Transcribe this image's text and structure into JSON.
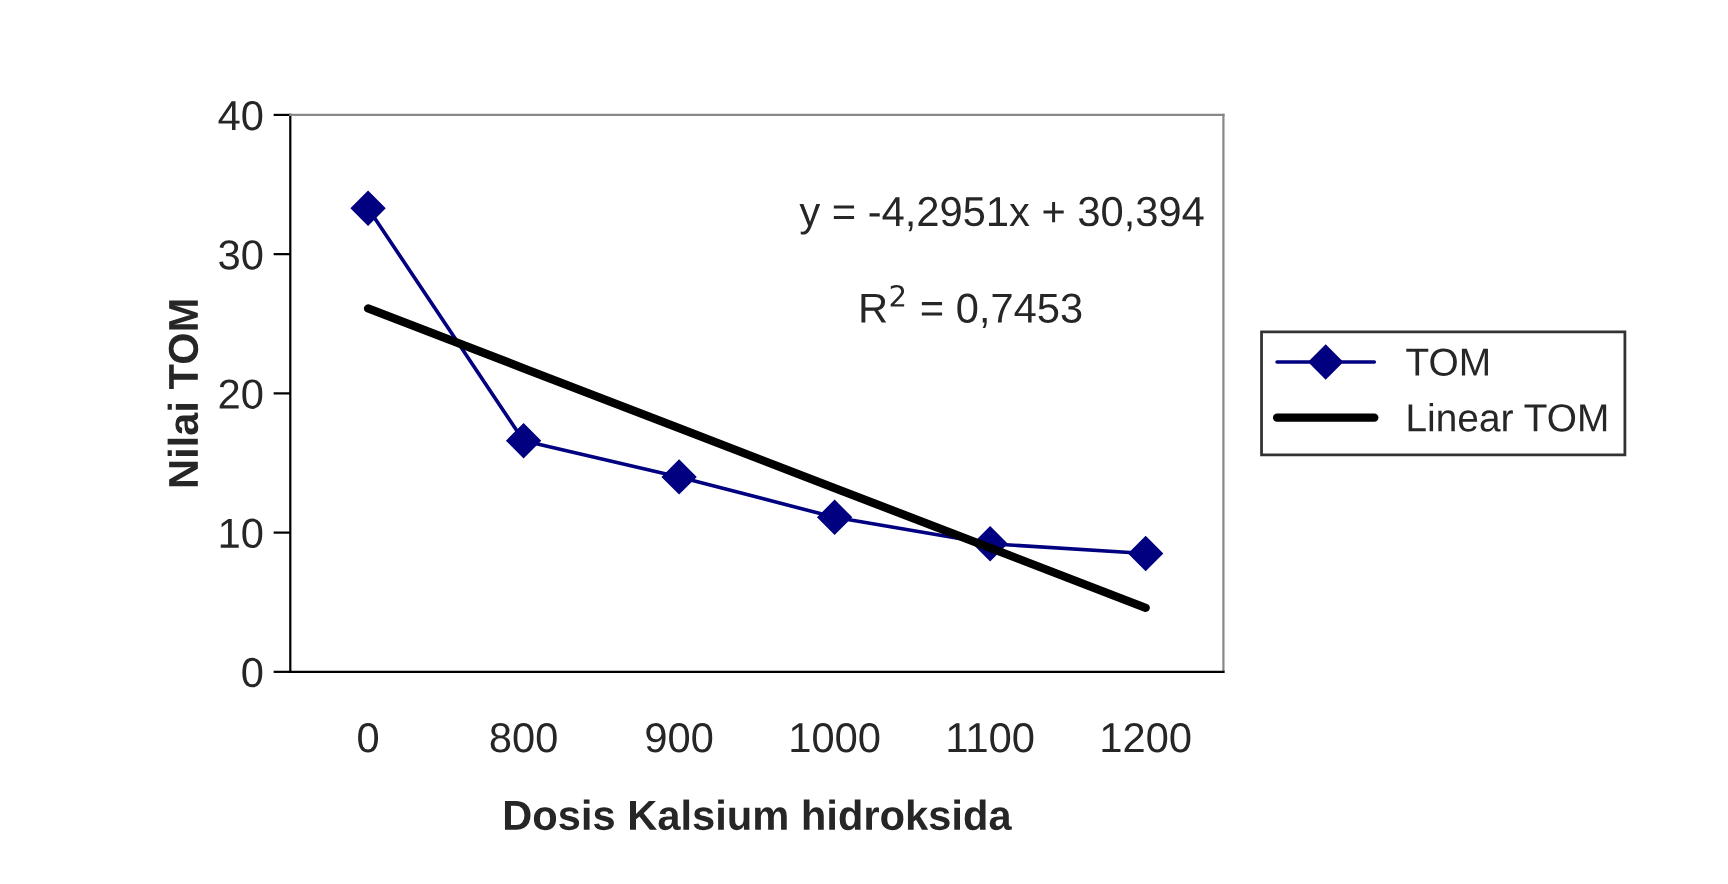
{
  "chart_data": {
    "type": "line",
    "xlabel": "Dosis Kalsium hidroksida",
    "ylabel": "Nilai TOM",
    "categories": [
      "0",
      "800",
      "900",
      "1000",
      "1100",
      "1200"
    ],
    "series": [
      {
        "name": "TOM",
        "color": "#000080",
        "values": [
          33.3,
          16.6,
          14.0,
          11.1,
          9.2,
          8.5
        ],
        "marker": "diamond"
      },
      {
        "name": "Linear TOM",
        "color": "#000000",
        "values": [
          26.1,
          21.8,
          17.5,
          13.2,
          8.9,
          4.6
        ],
        "marker": "none"
      }
    ],
    "ylim": [
      0,
      40
    ],
    "yticks": [
      0,
      10,
      20,
      30,
      40
    ],
    "annotations": [
      "y = -4,2951x + 30,394",
      "R$^{2}$ = 0,7453"
    ],
    "grid": false,
    "legend": "right",
    "line_style": "solid"
  }
}
